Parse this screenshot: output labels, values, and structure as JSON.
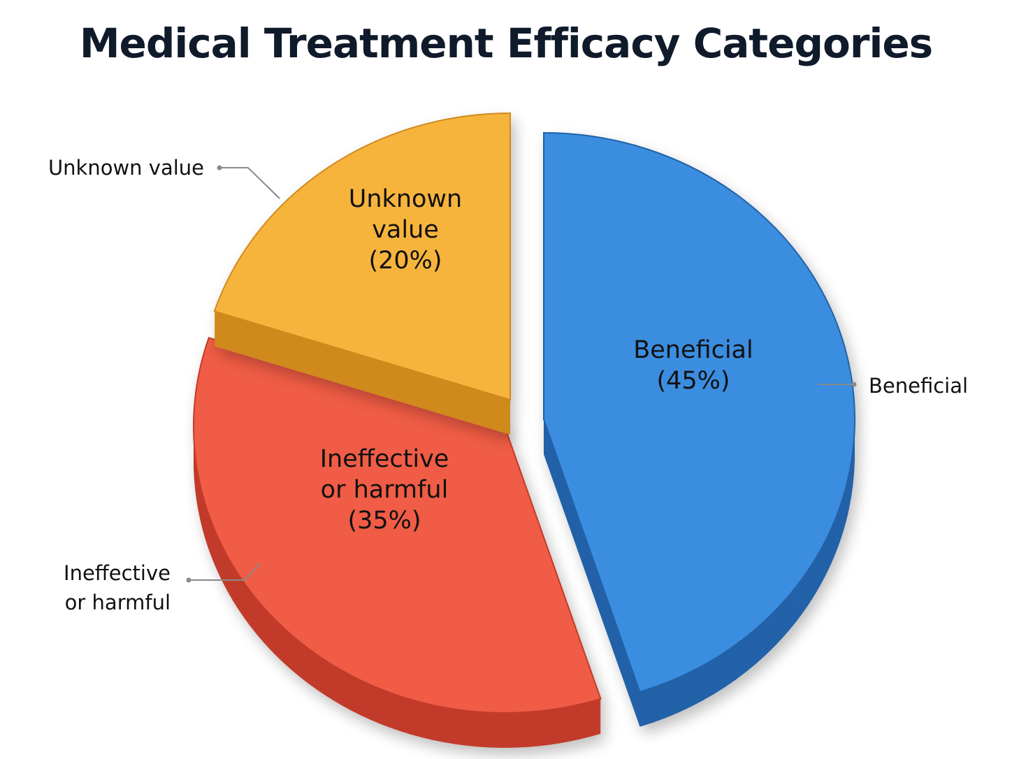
{
  "chart_data": {
    "type": "pie",
    "title": "Medical Treatment Efficacy Categories",
    "slices": [
      {
        "label": "Beneficial",
        "value": 45,
        "value_label": "(45%)",
        "callout": "Beneficial",
        "color": "#3b8de0",
        "side_color": "#2462a8"
      },
      {
        "label": "Ineffective or harmful",
        "value": 35,
        "value_label": "(35%)",
        "callout": "Ineffective or harmful",
        "color": "#f05c45",
        "side_color": "#c23b2b"
      },
      {
        "label": "Unknown value",
        "value": 20,
        "value_label": "(20%)",
        "callout": "Unknown value",
        "color": "#f7b43e",
        "side_color": "#d08a1c"
      }
    ]
  }
}
